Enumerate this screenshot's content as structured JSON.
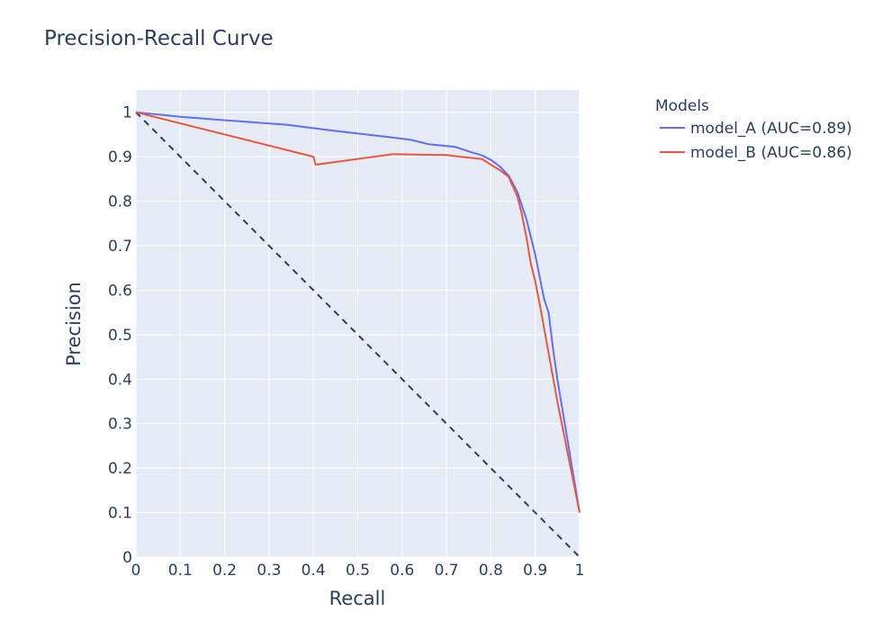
{
  "chart_data": {
    "type": "line",
    "title": "Precision-Recall Curve",
    "xlabel": "Recall",
    "ylabel": "Precision",
    "xlim": [
      0,
      1
    ],
    "ylim": [
      0,
      1.05
    ],
    "xticks": [
      0,
      0.1,
      0.2,
      0.3,
      0.4,
      0.5,
      0.6,
      0.7,
      0.8,
      0.9,
      1
    ],
    "xtick_labels": [
      "0",
      "0.1",
      "0.2",
      "0.3",
      "0.4",
      "0.5",
      "0.6",
      "0.7",
      "0.8",
      "0.9",
      "1"
    ],
    "yticks": [
      0,
      0.1,
      0.2,
      0.3,
      0.4,
      0.5,
      0.6,
      0.7,
      0.8,
      0.9,
      1
    ],
    "ytick_labels": [
      "0",
      "0.1",
      "0.2",
      "0.3",
      "0.4",
      "0.5",
      "0.6",
      "0.7",
      "0.8",
      "0.9",
      "1"
    ],
    "grid": true,
    "legend": {
      "title": "Models",
      "placement": "outside-top-right"
    },
    "series": [
      {
        "name": "model_A (AUC=0.89)",
        "color": "#636efa",
        "points": [
          [
            0,
            1.0
          ],
          [
            0.1,
            0.99
          ],
          [
            0.2,
            0.982
          ],
          [
            0.34,
            0.972
          ],
          [
            0.45,
            0.958
          ],
          [
            0.58,
            0.943
          ],
          [
            0.62,
            0.938
          ],
          [
            0.66,
            0.928
          ],
          [
            0.72,
            0.922
          ],
          [
            0.75,
            0.912
          ],
          [
            0.78,
            0.903
          ],
          [
            0.8,
            0.893
          ],
          [
            0.82,
            0.878
          ],
          [
            0.84,
            0.858
          ],
          [
            0.86,
            0.82
          ],
          [
            0.87,
            0.79
          ],
          [
            0.88,
            0.76
          ],
          [
            0.89,
            0.72
          ],
          [
            0.9,
            0.68
          ],
          [
            0.91,
            0.63
          ],
          [
            0.92,
            0.58
          ],
          [
            0.93,
            0.55
          ],
          [
            0.94,
            0.47
          ],
          [
            0.95,
            0.4
          ],
          [
            1.0,
            0.1
          ]
        ]
      },
      {
        "name": "model_B (AUC=0.86)",
        "color": "#ef553b",
        "points": [
          [
            0,
            1.0
          ],
          [
            0.4,
            0.9
          ],
          [
            0.405,
            0.882
          ],
          [
            0.58,
            0.906
          ],
          [
            0.63,
            0.905
          ],
          [
            0.7,
            0.904
          ],
          [
            0.73,
            0.9
          ],
          [
            0.78,
            0.895
          ],
          [
            0.8,
            0.882
          ],
          [
            0.82,
            0.87
          ],
          [
            0.84,
            0.855
          ],
          [
            0.86,
            0.81
          ],
          [
            0.87,
            0.77
          ],
          [
            0.88,
            0.72
          ],
          [
            0.89,
            0.66
          ],
          [
            0.9,
            0.62
          ],
          [
            0.91,
            0.57
          ],
          [
            0.95,
            0.35
          ],
          [
            1.0,
            0.1
          ]
        ]
      }
    ],
    "reference_line": {
      "color": "#2a3f5f",
      "dash": "dashed",
      "points": [
        [
          0,
          1
        ],
        [
          1,
          0
        ]
      ]
    }
  }
}
